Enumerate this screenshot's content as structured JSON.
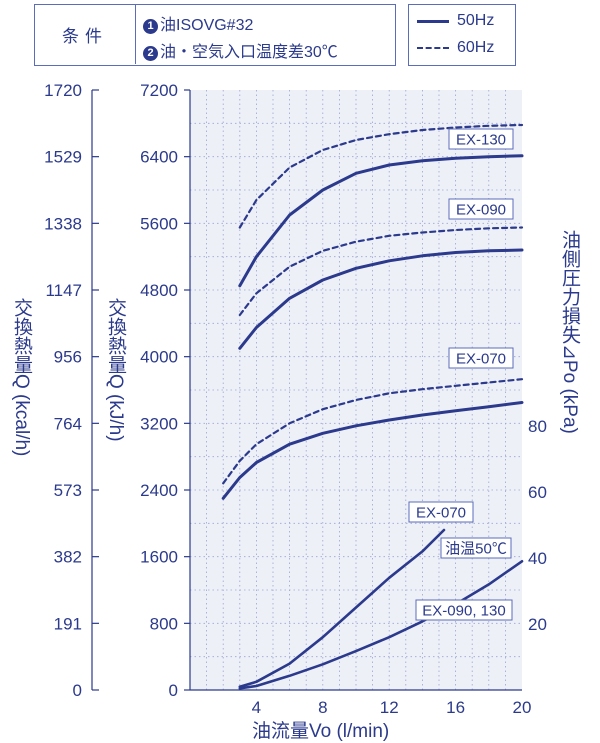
{
  "conditions": {
    "label": "条件",
    "items": [
      "油ISOVG#32",
      "油・空気入口温度差30℃"
    ]
  },
  "colors": {
    "line": "#2b3a8c",
    "grid": "#9aa4cf",
    "plot_bg": "#eef0f8",
    "label_box_border": "#5b6cb8"
  },
  "chart_data": {
    "type": "line",
    "xlabel": "油流量Vo (l/min)",
    "ylabel_kj": "交換熱量Q (kJ/h)",
    "ylabel_kcal": "交換熱量Q (kcal/h)",
    "ylabel_pressure": "油側圧力損失⊿Po (kPa)",
    "legend": [
      "50Hz",
      "60Hz"
    ],
    "xlim": [
      0,
      20
    ],
    "x_ticks": [
      4,
      8,
      12,
      16,
      20
    ],
    "ylim_kj": [
      0,
      7200
    ],
    "y_ticks_kj": [
      0,
      800,
      1600,
      2400,
      3200,
      4000,
      4800,
      5600,
      6400,
      7200
    ],
    "y_ticks_kcal": [
      "0",
      "191",
      "382",
      "573",
      "764",
      "956",
      "1147",
      "1338",
      "1529",
      "1720"
    ],
    "y_ticks_pressure": [
      20,
      40,
      60,
      80
    ],
    "heat_series": [
      {
        "label": "EX-130",
        "hz": "50Hz",
        "style": "solid",
        "x": [
          3,
          4,
          6,
          8,
          10,
          12,
          14,
          16,
          18,
          20
        ],
        "y": [
          4850,
          5200,
          5700,
          6000,
          6200,
          6300,
          6350,
          6380,
          6400,
          6410
        ]
      },
      {
        "label": "EX-130",
        "hz": "60Hz",
        "style": "dashed",
        "x": [
          3,
          4,
          6,
          8,
          10,
          12,
          14,
          16,
          18,
          20
        ],
        "y": [
          5550,
          5880,
          6270,
          6480,
          6600,
          6670,
          6720,
          6750,
          6770,
          6780
        ]
      },
      {
        "label": "EX-090",
        "hz": "50Hz",
        "style": "solid",
        "x": [
          3,
          4,
          6,
          8,
          10,
          12,
          14,
          16,
          18,
          20
        ],
        "y": [
          4100,
          4350,
          4700,
          4920,
          5060,
          5150,
          5210,
          5250,
          5270,
          5280
        ]
      },
      {
        "label": "EX-090",
        "hz": "60Hz",
        "style": "dashed",
        "x": [
          3,
          4,
          6,
          8,
          10,
          12,
          14,
          16,
          18,
          20
        ],
        "y": [
          4500,
          4760,
          5080,
          5270,
          5380,
          5450,
          5490,
          5520,
          5540,
          5550
        ]
      },
      {
        "label": "EX-070",
        "hz": "50Hz",
        "style": "solid",
        "x": [
          2,
          3,
          4,
          6,
          8,
          10,
          12,
          14,
          16,
          18,
          20
        ],
        "y": [
          2300,
          2550,
          2730,
          2950,
          3080,
          3170,
          3240,
          3300,
          3350,
          3400,
          3450
        ]
      },
      {
        "label": "EX-070",
        "hz": "60Hz",
        "style": "dashed",
        "x": [
          2,
          3,
          4,
          6,
          8,
          10,
          12,
          14,
          16,
          18,
          20
        ],
        "y": [
          2480,
          2750,
          2950,
          3200,
          3370,
          3480,
          3560,
          3610,
          3650,
          3690,
          3730
        ]
      }
    ],
    "pressure_series": [
      {
        "label": "EX-070",
        "x": [
          3,
          4,
          6,
          8,
          10,
          12,
          14,
          15.3
        ],
        "y_kpa": [
          1,
          2.5,
          8,
          16,
          25,
          34,
          42,
          48.5
        ]
      },
      {
        "label": "EX-090, 130",
        "x": [
          3,
          4,
          6,
          8,
          10,
          12,
          14,
          16,
          18,
          20
        ],
        "y_kpa": [
          0.5,
          1.2,
          4.3,
          7.8,
          11.8,
          16,
          20.8,
          26,
          32,
          39
        ]
      }
    ],
    "annotation": "油温50℃"
  }
}
